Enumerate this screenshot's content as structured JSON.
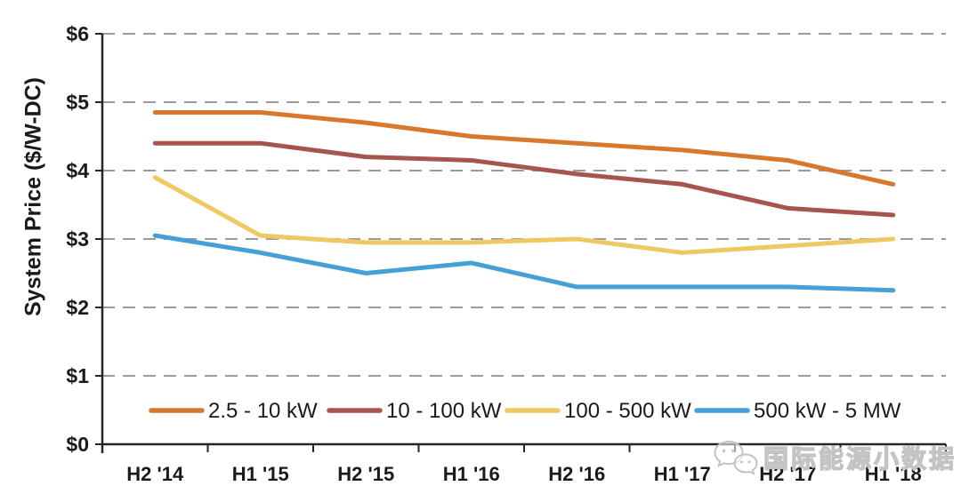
{
  "watermark": {
    "text": "国际能源小数据",
    "icon": "wechat-icon"
  },
  "chart_data": {
    "type": "line",
    "title": "",
    "xlabel": "",
    "ylabel": "System Price ($/W-DC)",
    "ylim": [
      0,
      6
    ],
    "y_ticks": [
      "$0",
      "$1",
      "$2",
      "$3",
      "$4",
      "$5",
      "$6"
    ],
    "grid": "horizontal-dashed",
    "legend_position": "bottom-inside",
    "categories": [
      "H2 '14",
      "H1 '15",
      "H2 '15",
      "H1 '16",
      "H2 '16",
      "H1 '17",
      "H2 '17",
      "H1 '18"
    ],
    "series": [
      {
        "name": "2.5 - 10 kW",
        "color": "#D8772E",
        "values": [
          4.85,
          4.85,
          4.7,
          4.5,
          4.4,
          4.3,
          4.15,
          3.8
        ]
      },
      {
        "name": "10 - 100 kW",
        "color": "#A6544E",
        "values": [
          4.4,
          4.4,
          4.2,
          4.15,
          3.95,
          3.8,
          3.45,
          3.35
        ]
      },
      {
        "name": "100 - 500 kW",
        "color": "#EEC962",
        "values": [
          3.9,
          3.05,
          2.95,
          2.95,
          3.0,
          2.8,
          2.9,
          3.0
        ]
      },
      {
        "name": "500 kW - 5 MW",
        "color": "#44A0D6",
        "values": [
          3.05,
          2.8,
          2.5,
          2.65,
          2.3,
          2.3,
          2.3,
          2.25
        ]
      }
    ],
    "axis_color": "#262626",
    "gridline_color": "#9B9B9B"
  }
}
